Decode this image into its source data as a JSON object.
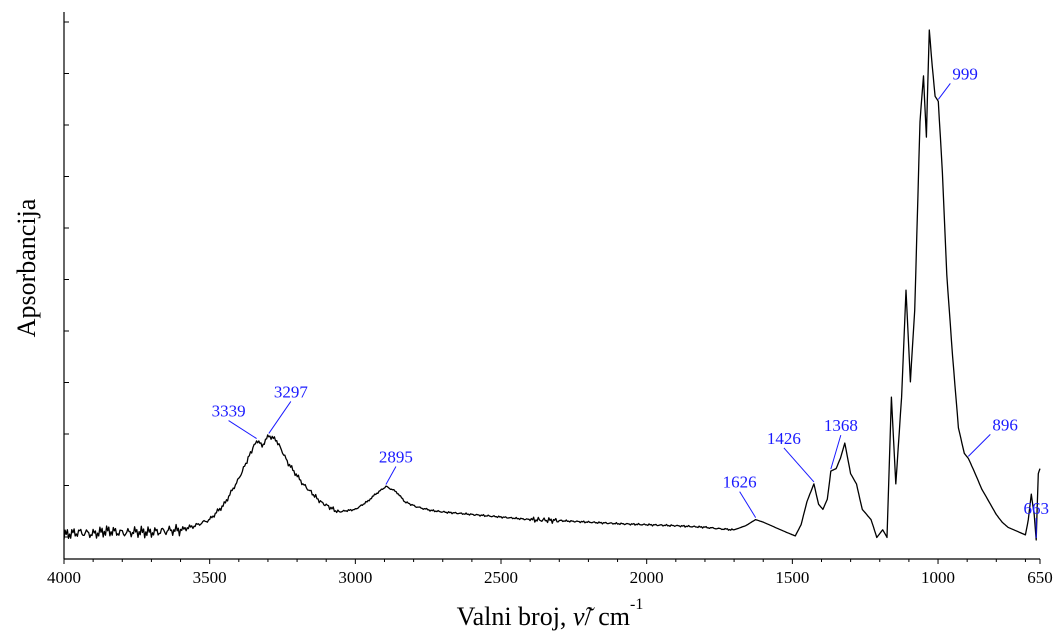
{
  "chart_data": {
    "type": "line",
    "title": "",
    "xlabel_main": "Valni broj, ",
    "xlabel_symbol": "ν̃",
    "xlabel_unit": "/ cm",
    "xlabel_exp": "-1",
    "ylabel": "Apsorbancija",
    "xlim": [
      4000,
      650
    ],
    "x_reversed": true,
    "ylim": [
      0,
      1
    ],
    "y_tick_count": 11,
    "x_ticks": [
      {
        "value": 4000,
        "label": "4000"
      },
      {
        "value": 3500,
        "label": "3500"
      },
      {
        "value": 3000,
        "label": "3000"
      },
      {
        "value": 2500,
        "label": "2500"
      },
      {
        "value": 2000,
        "label": "2000"
      },
      {
        "value": 1500,
        "label": "1500"
      },
      {
        "value": 1000,
        "label": "1000"
      },
      {
        "value": 650,
        "label": "650"
      }
    ],
    "series": [
      {
        "x": [
          4000,
          3950,
          3900,
          3850,
          3800,
          3750,
          3700,
          3650,
          3600,
          3550,
          3500,
          3450,
          3400,
          3360,
          3339,
          3320,
          3297,
          3270,
          3230,
          3180,
          3120,
          3060,
          3000,
          2960,
          2930,
          2895,
          2860,
          2830,
          2790,
          2740,
          2700,
          2600,
          2500,
          2400,
          2300,
          2200,
          2100,
          2000,
          1900,
          1800,
          1750,
          1700,
          1660,
          1626,
          1600,
          1560,
          1520,
          1490,
          1470,
          1450,
          1440,
          1426,
          1410,
          1395,
          1380,
          1368,
          1350,
          1335,
          1320,
          1300,
          1280,
          1260,
          1230,
          1210,
          1190,
          1175,
          1160,
          1145,
          1125,
          1110,
          1095,
          1080,
          1062,
          1050,
          1040,
          1030,
          1020,
          1010,
          999,
          985,
          970,
          950,
          930,
          910,
          896,
          880,
          850,
          820,
          800,
          780,
          760,
          740,
          720,
          700,
          690,
          680,
          670,
          663,
          656,
          650
        ],
        "y": [
          0.01,
          0.015,
          0.012,
          0.018,
          0.014,
          0.016,
          0.015,
          0.018,
          0.02,
          0.028,
          0.04,
          0.07,
          0.12,
          0.17,
          0.195,
          0.185,
          0.205,
          0.195,
          0.15,
          0.11,
          0.075,
          0.055,
          0.06,
          0.075,
          0.09,
          0.105,
          0.095,
          0.075,
          0.065,
          0.058,
          0.055,
          0.05,
          0.045,
          0.04,
          0.038,
          0.035,
          0.032,
          0.03,
          0.028,
          0.025,
          0.022,
          0.02,
          0.028,
          0.04,
          0.035,
          0.025,
          0.015,
          0.008,
          0.03,
          0.075,
          0.09,
          0.11,
          0.07,
          0.06,
          0.08,
          0.135,
          0.14,
          0.16,
          0.19,
          0.13,
          0.11,
          0.06,
          0.04,
          0.005,
          0.02,
          0.005,
          0.28,
          0.11,
          0.28,
          0.49,
          0.31,
          0.45,
          0.82,
          0.91,
          0.79,
          1.0,
          0.93,
          0.87,
          0.86,
          0.72,
          0.52,
          0.36,
          0.22,
          0.17,
          0.16,
          0.14,
          0.1,
          0.07,
          0.05,
          0.035,
          0.025,
          0.02,
          0.015,
          0.01,
          0.04,
          0.09,
          0.05,
          0.0,
          0.13,
          0.14
        ]
      }
    ],
    "peak_labels": [
      {
        "value": 3339,
        "label": "3339"
      },
      {
        "value": 3297,
        "label": "3297"
      },
      {
        "value": 2895,
        "label": "2895"
      },
      {
        "value": 1626,
        "label": "1626"
      },
      {
        "value": 1426,
        "label": "1426"
      },
      {
        "value": 1368,
        "label": "1368"
      },
      {
        "value": 999,
        "label": "999"
      },
      {
        "value": 896,
        "label": "896"
      },
      {
        "value": 663,
        "label": "663"
      }
    ]
  }
}
